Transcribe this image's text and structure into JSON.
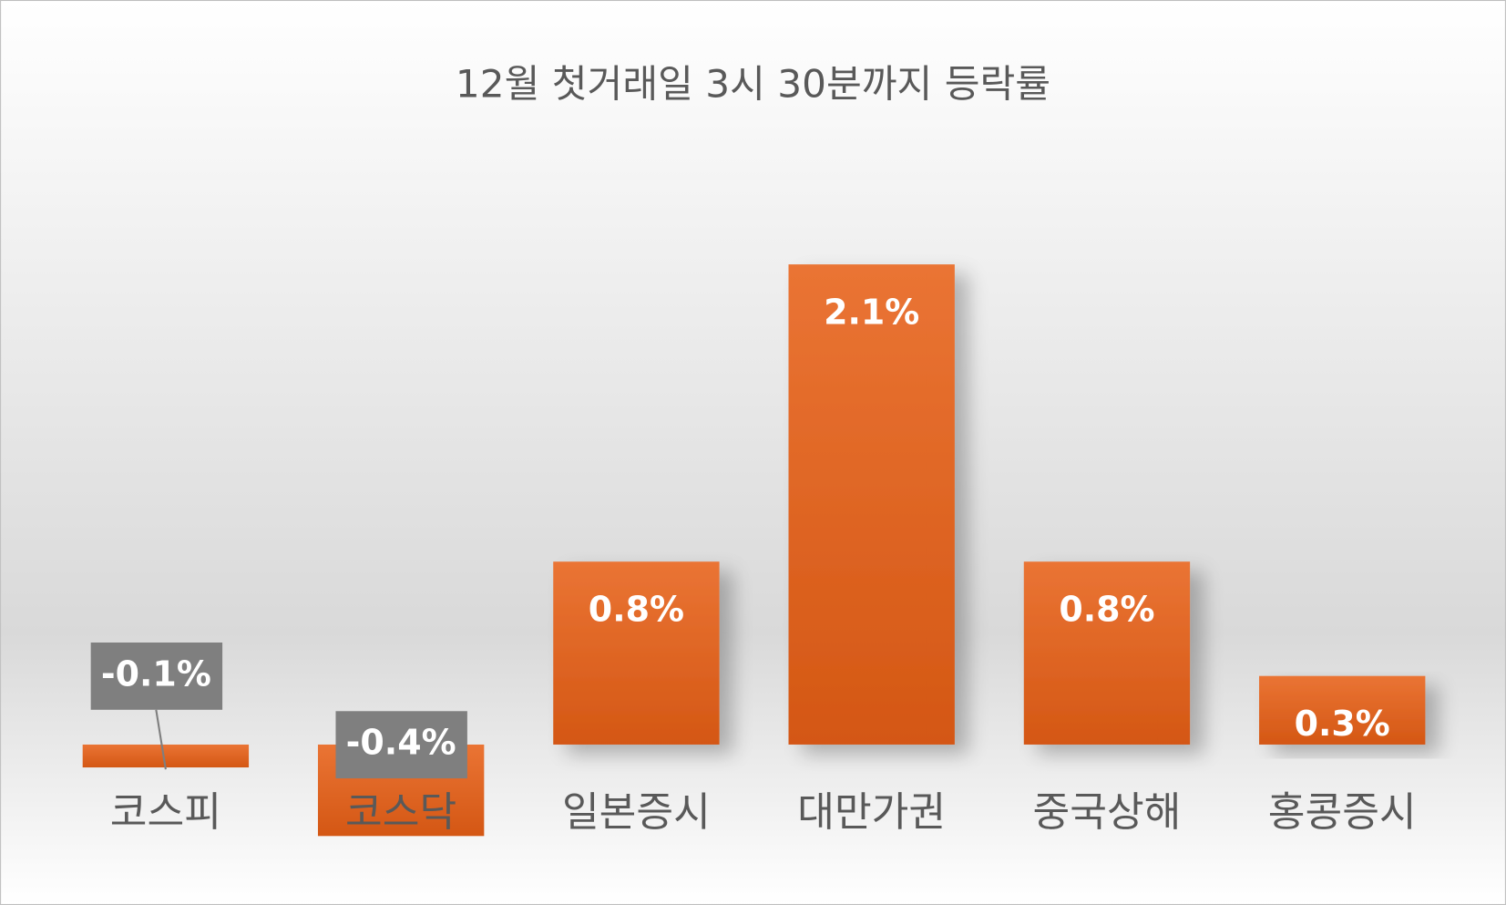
{
  "chart_data": {
    "type": "bar",
    "title": "12월 첫거래일 3시 30분까지 등락률",
    "categories": [
      "코스피",
      "코스닥",
      "일본증시",
      "대만가권",
      "중국상해",
      "홍콩증시"
    ],
    "values": [
      -0.1,
      -0.4,
      0.8,
      2.1,
      0.8,
      0.3
    ],
    "value_labels": [
      "-0.1%",
      "-0.4%",
      "0.8%",
      "2.1%",
      "0.8%",
      "0.3%"
    ],
    "color": "#e0601f"
  }
}
